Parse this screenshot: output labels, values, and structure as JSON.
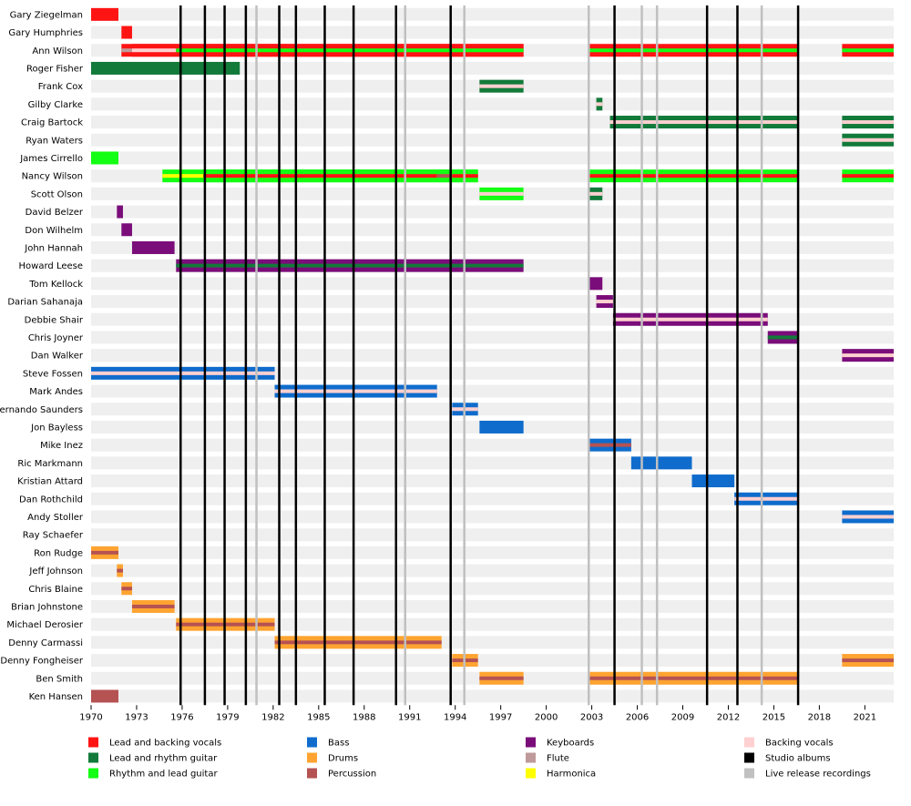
{
  "chart_data": {
    "type": "timeline",
    "title": "",
    "xlim": [
      1970,
      2022.9
    ],
    "xticks": [
      1970,
      1973,
      1976,
      1979,
      1982,
      1985,
      1988,
      1991,
      1994,
      1997,
      2000,
      2003,
      2006,
      2009,
      2012,
      2015,
      2018,
      2021
    ],
    "colors": {
      "Lead and backing vocals": "#ff1414",
      "Lead and rhythm guitar": "#127a3a",
      "Rhythm and lead guitar": "#13ff13",
      "Bass": "#0f6ccc",
      "Drums": "#ffa431",
      "Percussion": "#b55252",
      "Keyboards": "#7a0d7a",
      "Flute": "#bf9a9a",
      "Harmonica": "#ffff00",
      "Backing vocals": "#ffd0d0",
      "Studio albums": "#000000",
      "Live release recordings": "#c0c0c0"
    },
    "legend": [
      [
        "Lead and backing vocals",
        "Bass",
        "Keyboards",
        "Backing vocals"
      ],
      [
        "Lead and rhythm guitar",
        "Drums",
        "Flute",
        "Studio albums"
      ],
      [
        "Rhythm and lead guitar",
        "Percussion",
        "Harmonica",
        "Live release recordings"
      ]
    ],
    "studio_albums": [
      1975.9,
      1977.5,
      1978.8,
      1980.2,
      1982.4,
      1983.5,
      1985.4,
      1987.3,
      1990.1,
      1993.7,
      2004.5,
      2010.6,
      2012.6,
      2016.6
    ],
    "live_releases": [
      1980.9,
      1990.7,
      1994.6,
      2002.8,
      2006.3,
      2007.3,
      2014.2
    ],
    "members": [
      {
        "name": "Gary Ziegelman",
        "bars": [
          {
            "start": 1970.0,
            "end": 1971.8,
            "role": "Lead and backing vocals"
          }
        ]
      },
      {
        "name": "Gary Humphries",
        "bars": [
          {
            "start": 1972.0,
            "end": 1972.7,
            "role": "Lead and backing vocals"
          }
        ]
      },
      {
        "name": "Ann Wilson",
        "bars": [
          {
            "start": 1972.0,
            "end": 1998.5,
            "role": "Lead and backing vocals",
            "stripe": "Flute",
            "stripe_end": 1972.7
          },
          {
            "start": 1972.7,
            "end": 1975.6,
            "role": "Lead and backing vocals",
            "stripe": "Backing vocals"
          },
          {
            "start": 1975.6,
            "end": 1998.5,
            "role": "Lead and backing vocals",
            "stripe": "Rhythm and lead guitar"
          },
          {
            "start": 2002.8,
            "end": 2016.6,
            "role": "Lead and backing vocals",
            "stripe": "Rhythm and lead guitar"
          },
          {
            "start": 2019.5,
            "end": 2022.9,
            "role": "Lead and backing vocals",
            "stripe": "Rhythm and lead guitar"
          }
        ]
      },
      {
        "name": "Roger Fisher",
        "bars": [
          {
            "start": 1970.0,
            "end": 1979.8,
            "role": "Lead and rhythm guitar"
          }
        ]
      },
      {
        "name": "Frank Cox",
        "bars": [
          {
            "start": 1995.6,
            "end": 1998.5,
            "role": "Lead and rhythm guitar",
            "stripe": "Backing vocals"
          }
        ]
      },
      {
        "name": "Gilby Clarke",
        "bars": [
          {
            "start": 2003.3,
            "end": 2003.7,
            "role": "Lead and rhythm guitar",
            "stripe": "Backing vocals"
          }
        ]
      },
      {
        "name": "Craig Bartock",
        "bars": [
          {
            "start": 2004.2,
            "end": 2016.6,
            "role": "Lead and rhythm guitar",
            "stripe": "Backing vocals"
          },
          {
            "start": 2019.5,
            "end": 2022.9,
            "role": "Lead and rhythm guitar",
            "stripe": "Backing vocals"
          }
        ]
      },
      {
        "name": "Ryan Waters",
        "bars": [
          {
            "start": 2019.5,
            "end": 2022.9,
            "role": "Lead and rhythm guitar",
            "stripe": "Backing vocals"
          }
        ]
      },
      {
        "name": "James Cirrello",
        "bars": [
          {
            "start": 1970.0,
            "end": 1971.8,
            "role": "Rhythm and lead guitar"
          }
        ]
      },
      {
        "name": "Nancy Wilson",
        "bars": [
          {
            "start": 1974.7,
            "end": 1995.5,
            "role": "Rhythm and lead guitar",
            "stripe": "Harmonica",
            "stripe_end": 1977.4
          },
          {
            "start": 1977.4,
            "end": 1992.8,
            "role": "Rhythm and lead guitar",
            "stripe": "Lead and backing vocals"
          },
          {
            "start": 1992.8,
            "end": 1993.8,
            "role": "Rhythm and lead guitar",
            "stripe": "Percussion"
          },
          {
            "start": 1993.8,
            "end": 1995.5,
            "role": "Rhythm and lead guitar",
            "stripe": "Lead and backing vocals"
          },
          {
            "start": 2002.8,
            "end": 2016.6,
            "role": "Rhythm and lead guitar",
            "stripe": "Lead and backing vocals"
          },
          {
            "start": 2019.5,
            "end": 2022.9,
            "role": "Rhythm and lead guitar",
            "stripe": "Lead and backing vocals"
          }
        ]
      },
      {
        "name": "Scott Olson",
        "bars": [
          {
            "start": 1995.6,
            "end": 1998.5,
            "role": "Rhythm and lead guitar",
            "stripe": "Backing vocals"
          },
          {
            "start": 2002.8,
            "end": 2003.7,
            "role": "Lead and rhythm guitar",
            "stripe": "Backing vocals"
          }
        ]
      },
      {
        "name": "David Belzer",
        "bars": [
          {
            "start": 1971.7,
            "end": 1972.1,
            "role": "Keyboards"
          }
        ]
      },
      {
        "name": "Don Wilhelm",
        "bars": [
          {
            "start": 1972.0,
            "end": 1972.7,
            "role": "Keyboards"
          }
        ]
      },
      {
        "name": "John Hannah",
        "bars": [
          {
            "start": 1972.7,
            "end": 1975.5,
            "role": "Keyboards"
          }
        ]
      },
      {
        "name": "Howard Leese",
        "bars": [
          {
            "start": 1975.6,
            "end": 1998.5,
            "role": "Keyboards",
            "stripe": "Lead and rhythm guitar"
          }
        ]
      },
      {
        "name": "Tom Kellock",
        "bars": [
          {
            "start": 2002.8,
            "end": 2003.7,
            "role": "Keyboards"
          }
        ]
      },
      {
        "name": "Darian Sahanaja",
        "bars": [
          {
            "start": 2003.3,
            "end": 2004.4,
            "role": "Keyboards",
            "stripe": "Backing vocals"
          }
        ]
      },
      {
        "name": "Debbie Shair",
        "bars": [
          {
            "start": 2004.4,
            "end": 2014.6,
            "role": "Keyboards",
            "stripe": "Backing vocals"
          }
        ]
      },
      {
        "name": "Chris Joyner",
        "bars": [
          {
            "start": 2014.6,
            "end": 2016.6,
            "role": "Keyboards",
            "stripe": "Lead and rhythm guitar"
          }
        ]
      },
      {
        "name": "Dan Walker",
        "bars": [
          {
            "start": 2019.5,
            "end": 2022.9,
            "role": "Keyboards",
            "stripe": "Backing vocals"
          }
        ]
      },
      {
        "name": "Steve Fossen",
        "bars": [
          {
            "start": 1970.0,
            "end": 1982.1,
            "role": "Bass",
            "stripe": "Backing vocals"
          }
        ]
      },
      {
        "name": "Mark Andes",
        "bars": [
          {
            "start": 1982.1,
            "end": 1992.8,
            "role": "Bass",
            "stripe": "Backing vocals"
          }
        ]
      },
      {
        "name": "Fernando Saunders",
        "bars": [
          {
            "start": 1993.8,
            "end": 1995.5,
            "role": "Bass",
            "stripe": "Backing vocals"
          }
        ]
      },
      {
        "name": "Jon Bayless",
        "bars": [
          {
            "start": 1995.6,
            "end": 1998.5,
            "role": "Bass"
          }
        ]
      },
      {
        "name": "Mike Inez",
        "bars": [
          {
            "start": 2002.8,
            "end": 2005.6,
            "role": "Bass",
            "stripe": "Percussion"
          }
        ]
      },
      {
        "name": "Ric Markmann",
        "bars": [
          {
            "start": 2005.6,
            "end": 2009.6,
            "role": "Bass"
          }
        ]
      },
      {
        "name": "Kristian Attard",
        "bars": [
          {
            "start": 2009.6,
            "end": 2012.4,
            "role": "Bass"
          }
        ]
      },
      {
        "name": "Dan Rothchild",
        "bars": [
          {
            "start": 2012.4,
            "end": 2016.6,
            "role": "Bass",
            "stripe": "Backing vocals"
          }
        ]
      },
      {
        "name": "Andy Stoller",
        "bars": [
          {
            "start": 2019.5,
            "end": 2022.9,
            "role": "Bass",
            "stripe": "Backing vocals"
          }
        ]
      },
      {
        "name": "Ray Schaefer",
        "bars": []
      },
      {
        "name": "Ron Rudge",
        "bars": [
          {
            "start": 1970.0,
            "end": 1971.8,
            "role": "Drums",
            "stripe": "Percussion"
          }
        ]
      },
      {
        "name": "Jeff Johnson",
        "bars": [
          {
            "start": 1971.7,
            "end": 1972.1,
            "role": "Drums",
            "stripe": "Percussion"
          }
        ]
      },
      {
        "name": "Chris Blaine",
        "bars": [
          {
            "start": 1972.0,
            "end": 1972.7,
            "role": "Drums",
            "stripe": "Percussion"
          }
        ]
      },
      {
        "name": "Brian Johnstone",
        "bars": [
          {
            "start": 1972.7,
            "end": 1975.5,
            "role": "Drums",
            "stripe": "Percussion"
          }
        ]
      },
      {
        "name": "Michael Derosier",
        "bars": [
          {
            "start": 1975.6,
            "end": 1982.1,
            "role": "Drums",
            "stripe": "Percussion"
          }
        ]
      },
      {
        "name": "Denny Carmassi",
        "bars": [
          {
            "start": 1982.1,
            "end": 1993.1,
            "role": "Drums",
            "stripe": "Percussion"
          }
        ]
      },
      {
        "name": "Denny Fongheiser",
        "bars": [
          {
            "start": 1993.8,
            "end": 1995.5,
            "role": "Drums",
            "stripe": "Percussion"
          },
          {
            "start": 2019.5,
            "end": 2022.9,
            "role": "Drums",
            "stripe": "Percussion"
          }
        ]
      },
      {
        "name": "Ben Smith",
        "bars": [
          {
            "start": 1995.6,
            "end": 1998.5,
            "role": "Drums",
            "stripe": "Percussion"
          },
          {
            "start": 2002.8,
            "end": 2016.6,
            "role": "Drums",
            "stripe": "Percussion"
          }
        ]
      },
      {
        "name": "Ken Hansen",
        "bars": [
          {
            "start": 1970.0,
            "end": 1971.8,
            "role": "Percussion"
          }
        ]
      }
    ]
  }
}
